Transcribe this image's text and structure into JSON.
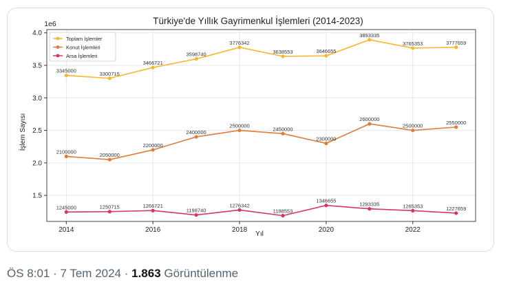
{
  "tweet_meta": {
    "time": "ÖS 8:01",
    "date": "7 Tem 2024",
    "separator": " · ",
    "view_count": "1.863",
    "view_label": "Görüntülenme"
  },
  "chart_data": {
    "type": "line",
    "title": "Türkiye'de Yıllık Gayrimenkul İşlemleri (2014-2023)",
    "xlabel": "Yıl",
    "ylabel": "İşlem Sayısı",
    "y_offset_label": "1e6",
    "x": [
      2014,
      2015,
      2016,
      2017,
      2018,
      2019,
      2020,
      2021,
      2022,
      2023
    ],
    "xticks": [
      2014,
      2016,
      2018,
      2020,
      2022
    ],
    "yticks": [
      1.5,
      2.0,
      2.5,
      3.0,
      3.5,
      4.0
    ],
    "ytick_labels": [
      "1.5",
      "2.0",
      "2.5",
      "3.0",
      "3.5",
      "4.0"
    ],
    "xlim": [
      2013.55,
      2023.45
    ],
    "ylim": [
      1.1,
      4.05
    ],
    "grid": true,
    "legend_position": "top-left",
    "series": [
      {
        "name": "Toplam İşlemler",
        "color": "#f5b82e",
        "values": [
          3345000,
          3300715,
          3466721,
          3598740,
          3776342,
          3638553,
          3646655,
          3893335,
          3765353,
          3777659
        ],
        "labels": [
          "3345000",
          "3300715",
          "3466721",
          "3598740",
          "3776342",
          "3638553",
          "3646655",
          "3893335",
          "3765353",
          "3777659"
        ]
      },
      {
        "name": "Konut İşlemleri",
        "color": "#e07b39",
        "values": [
          2100000,
          2050000,
          2200000,
          2400000,
          2500000,
          2450000,
          2300000,
          2600000,
          2500000,
          2550000
        ],
        "labels": [
          "2100000",
          "2050000",
          "2200000",
          "2400000",
          "2500000",
          "2450000",
          "2300000",
          "2600000",
          "2500000",
          "2550000"
        ]
      },
      {
        "name": "Arsa İşlemleri",
        "color": "#d6365e",
        "values": [
          1245000,
          1250715,
          1266721,
          1198740,
          1276342,
          1188553,
          1346655,
          1293335,
          1265353,
          1227659
        ],
        "labels": [
          "1245000",
          "1250715",
          "1266721",
          "1198740",
          "1276342",
          "1188553",
          "1346655",
          "1293335",
          "1265353",
          "1227659"
        ]
      }
    ]
  }
}
